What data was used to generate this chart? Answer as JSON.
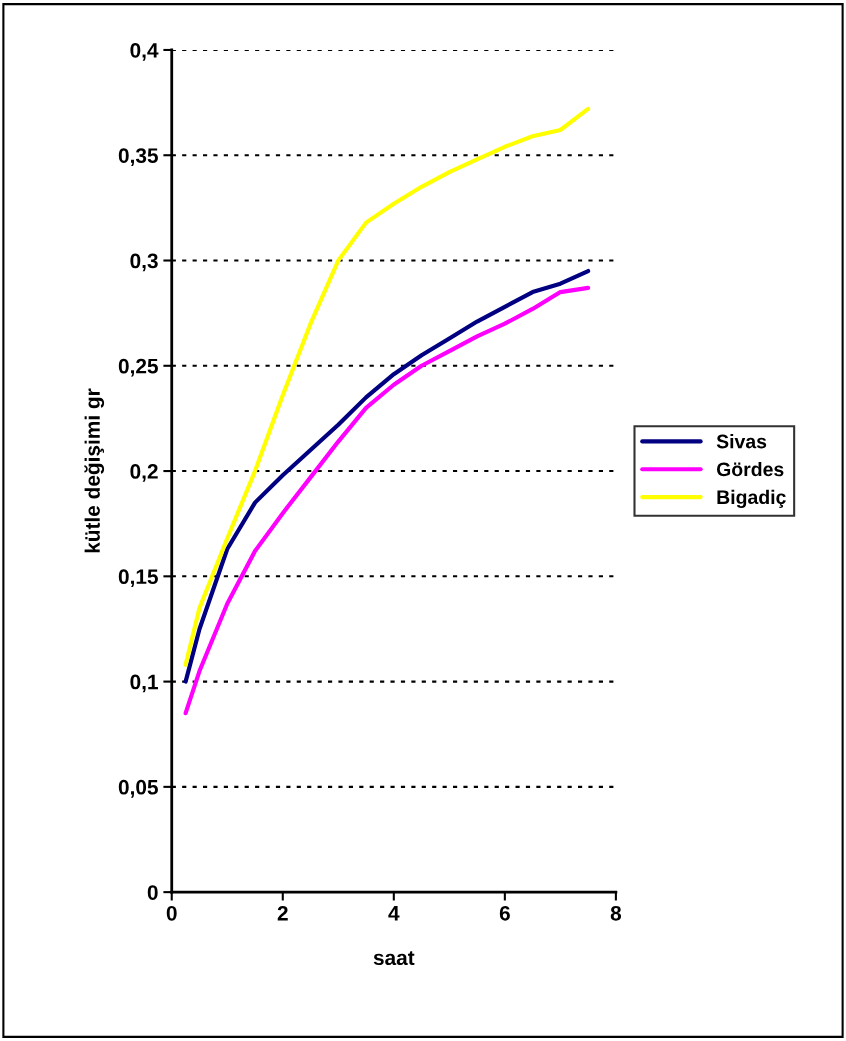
{
  "chart_data": {
    "type": "line",
    "xlabel": "saat",
    "ylabel": "kütle değişimi gr",
    "xlim": [
      0,
      8
    ],
    "xticks": [
      0,
      2,
      4,
      6,
      8
    ],
    "ylim": [
      0,
      0.4
    ],
    "yticks": [
      {
        "value": 0,
        "label": "0"
      },
      {
        "value": 0.05,
        "label": "0,05"
      },
      {
        "value": 0.1,
        "label": "0,1"
      },
      {
        "value": 0.15,
        "label": "0,15"
      },
      {
        "value": 0.2,
        "label": "0,2"
      },
      {
        "value": 0.25,
        "label": "0,25"
      },
      {
        "value": 0.3,
        "label": "0,3"
      },
      {
        "value": 0.35,
        "label": "0,35"
      },
      {
        "value": 0.4,
        "label": "0,4"
      }
    ],
    "x": [
      0.25,
      0.5,
      1,
      1.5,
      2,
      2.5,
      3,
      3.5,
      4,
      4.5,
      5,
      5.5,
      6,
      6.5,
      7,
      7.5
    ],
    "series": [
      {
        "name": "Sivas",
        "color": "#000080",
        "values": [
          0.1,
          0.125,
          0.163,
          0.185,
          0.198,
          0.21,
          0.222,
          0.235,
          0.246,
          0.255,
          0.263,
          0.271,
          0.278,
          0.285,
          0.289,
          0.295
        ]
      },
      {
        "name": "Gördes",
        "color": "#ff00ff",
        "values": [
          0.085,
          0.105,
          0.137,
          0.162,
          0.18,
          0.197,
          0.214,
          0.23,
          0.241,
          0.25,
          0.257,
          0.264,
          0.27,
          0.277,
          0.285,
          0.287
        ]
      },
      {
        "name": "Bigadiç",
        "color": "#ffff00",
        "values": [
          0.108,
          0.135,
          0.168,
          0.2,
          0.236,
          0.27,
          0.3,
          0.318,
          0.327,
          0.335,
          0.342,
          0.348,
          0.354,
          0.359,
          0.362,
          0.372
        ]
      }
    ],
    "grid": "y",
    "legend": "right",
    "marker": "none",
    "line_style": "solid"
  }
}
